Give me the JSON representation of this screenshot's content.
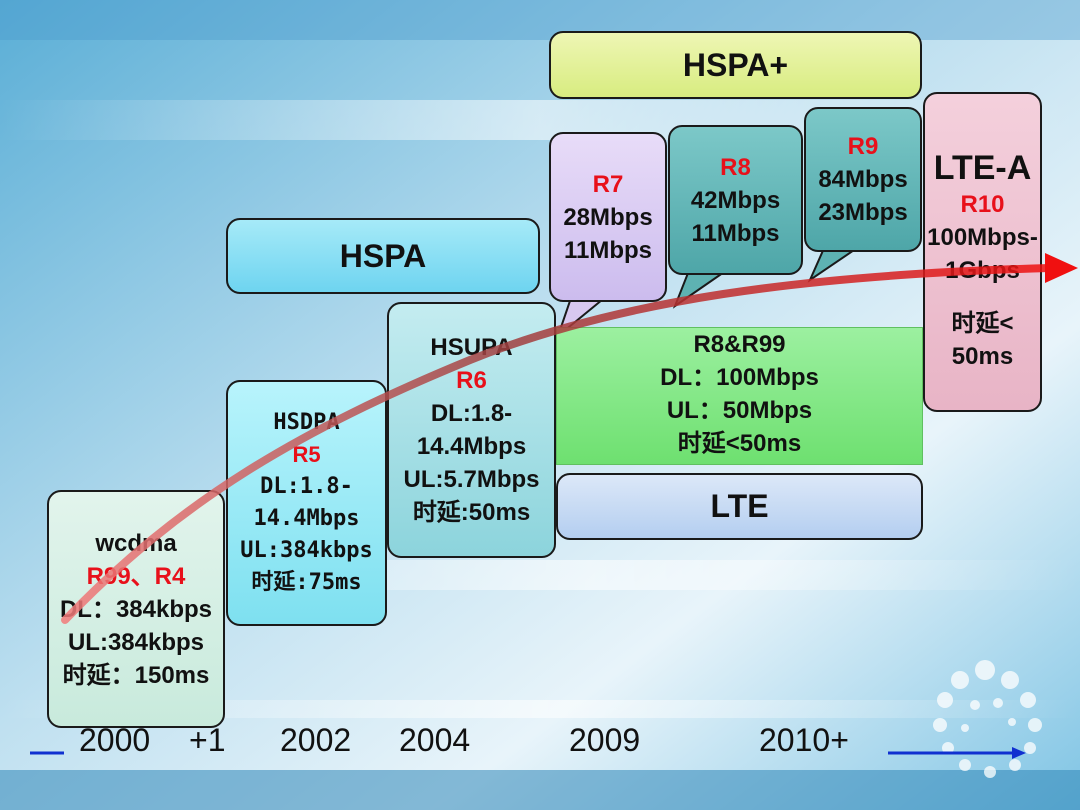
{
  "hspa_plus": {
    "label": "HSPA+"
  },
  "hspa": {
    "label": "HSPA"
  },
  "lte": {
    "label": "LTE"
  },
  "wcdma": {
    "name": "wcdma",
    "release": "R99、R4",
    "dl": "DL：384kbps",
    "ul": "UL:384kbps",
    "latency": "时延：150ms"
  },
  "hsdpa": {
    "name": "HSDPA",
    "release": "R5",
    "dl1": "DL:1.8-",
    "dl2": "14.4Mbps",
    "ul": "UL:384kbps",
    "latency": "时延:75ms"
  },
  "hsupa": {
    "name": "HSUPA",
    "release": "R6",
    "dl1": "DL:1.8-",
    "dl2": "14.4Mbps",
    "ul": "UL:5.7Mbps",
    "latency": "时延:50ms"
  },
  "r7": {
    "release": "R7",
    "dl": "28Mbps",
    "ul": "11Mbps"
  },
  "r8": {
    "release": "R8",
    "dl": "42Mbps",
    "ul": "11Mbps"
  },
  "r9": {
    "release": "R9",
    "dl": "84Mbps",
    "ul": "23Mbps"
  },
  "lte_spec": {
    "release": "R8&R99",
    "dl": "DL：100Mbps",
    "ul": "UL：50Mbps",
    "latency": "时延<50ms"
  },
  "lte_a": {
    "name": "LTE-A",
    "release": "R10",
    "rate1": "100Mbps-",
    "rate2": "1Gbps",
    "latency1": "时延<",
    "latency2": "50ms"
  },
  "timeline": [
    "2000",
    "+1",
    "2002",
    "2004",
    "2009",
    "2010+"
  ],
  "colors": {
    "release_red": "#e8101a",
    "arrow_red": "#f01010",
    "timeline_blue": "#1030d0"
  }
}
